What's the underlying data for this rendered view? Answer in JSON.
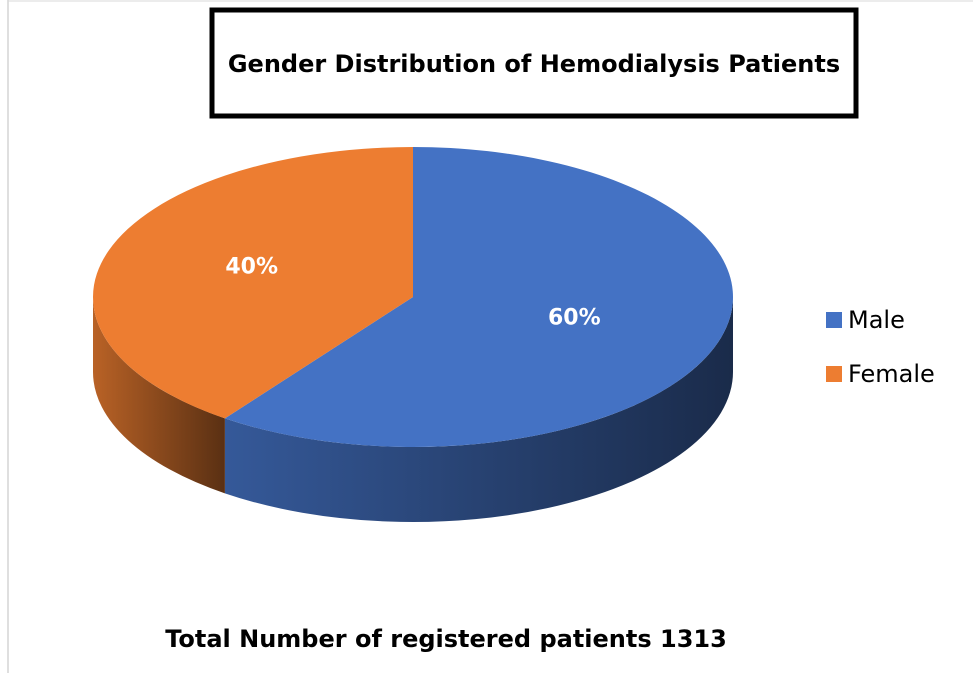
{
  "chart_data": {
    "type": "pie",
    "title": "Gender Distribution of Hemodialysis Patients",
    "categories": [
      "Male",
      "Female"
    ],
    "values": [
      60,
      40
    ],
    "value_labels": [
      "60%",
      "40%"
    ],
    "colors": [
      "#4472c4",
      "#ed7d31"
    ],
    "legend": "right",
    "annotation": "Total Number of registered patients 1313"
  }
}
